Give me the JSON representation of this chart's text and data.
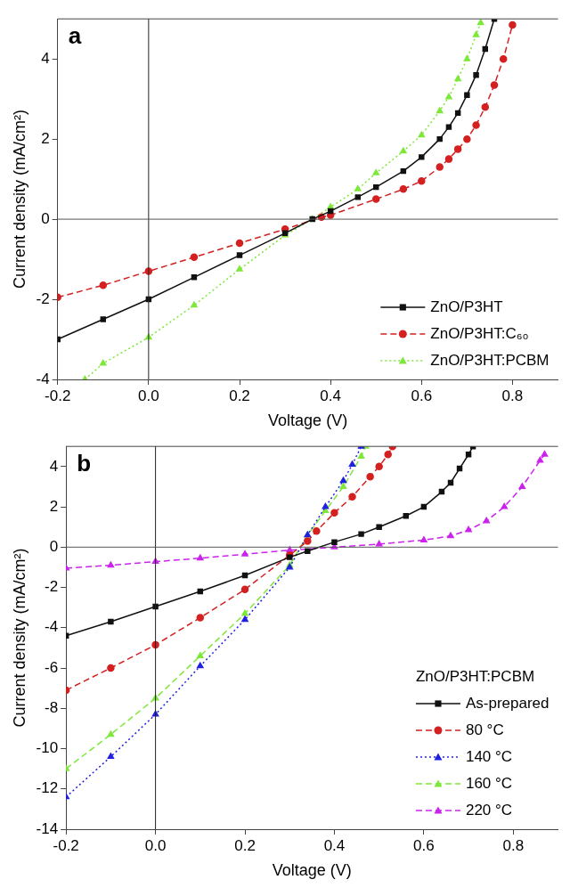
{
  "chart_data": [
    {
      "type": "line",
      "xlabel": "Voltage (V)",
      "ylabel": "Current density (mA/cm²)",
      "annotations": [
        "a"
      ],
      "xlim": [
        -0.2,
        0.9
      ],
      "xticks": [
        -0.2,
        {
          "value": 0,
          "label": "0.0"
        },
        0.2,
        0.4,
        0.6,
        0.8
      ],
      "ylim": [
        -4,
        5
      ],
      "yticks": [
        -4,
        -2,
        0,
        2,
        4
      ],
      "grid": false,
      "legend": "bottom right",
      "ref_lines": [
        {
          "axis": "x",
          "value": 0,
          "color": "#222222"
        },
        {
          "axis": "y",
          "value": 0,
          "color": "#555555"
        }
      ],
      "series": [
        {
          "name": "ZnO/P3HT",
          "color": "#111111",
          "marker": "square",
          "line_style": "solid",
          "x": [
            -0.2,
            -0.1,
            0,
            0.1,
            0.2,
            0.3,
            0.36,
            0.4,
            0.46,
            0.5,
            0.56,
            0.6,
            0.64,
            0.66,
            0.68,
            0.7,
            0.72,
            0.74,
            0.76
          ],
          "values": [
            -3.0,
            -2.5,
            -2.0,
            -1.45,
            -0.9,
            -0.35,
            0,
            0.2,
            0.55,
            0.8,
            1.2,
            1.55,
            2.0,
            2.3,
            2.65,
            3.1,
            3.6,
            4.25,
            5.0
          ]
        },
        {
          "name": "ZnO/P3HT:C₆₀",
          "color": "#d42020",
          "marker": "circle",
          "line_style": "dashed",
          "x": [
            -0.2,
            -0.1,
            0,
            0.1,
            0.2,
            0.3,
            0.38,
            0.4,
            0.5,
            0.56,
            0.6,
            0.64,
            0.66,
            0.68,
            0.7,
            0.72,
            0.74,
            0.76,
            0.78,
            0.8
          ],
          "values": [
            -1.95,
            -1.65,
            -1.3,
            -0.95,
            -0.6,
            -0.25,
            0.05,
            0.1,
            0.5,
            0.75,
            0.95,
            1.3,
            1.5,
            1.75,
            2.0,
            2.35,
            2.8,
            3.35,
            4.0,
            4.85
          ]
        },
        {
          "name": "ZnO/P3HT:PCBM",
          "color": "#7ee83a",
          "marker": "triangle",
          "line_style": "dotted",
          "x": [
            -0.14,
            -0.1,
            0,
            0.1,
            0.2,
            0.3,
            0.36,
            0.4,
            0.46,
            0.5,
            0.56,
            0.6,
            0.64,
            0.66,
            0.68,
            0.7,
            0.72,
            0.73
          ],
          "values": [
            -4.0,
            -3.6,
            -2.95,
            -2.15,
            -1.25,
            -0.4,
            0,
            0.3,
            0.75,
            1.15,
            1.7,
            2.1,
            2.7,
            3.05,
            3.5,
            4.0,
            4.6,
            4.9
          ]
        }
      ]
    },
    {
      "type": "line",
      "xlabel": "Voltage (V)",
      "ylabel": "Current density (mA/cm²)",
      "annotations": [
        "b"
      ],
      "legend_title": "ZnO/P3HT:PCBM",
      "xlim": [
        -0.2,
        0.9
      ],
      "xticks": [
        -0.2,
        {
          "value": 0,
          "label": "0.0"
        },
        0.2,
        0.4,
        0.6,
        0.8
      ],
      "ylim": [
        -14,
        5
      ],
      "yticks": [
        -14,
        -12,
        -10,
        -8,
        -6,
        -4,
        -2,
        0,
        2,
        4
      ],
      "grid": false,
      "legend": "bottom right",
      "ref_lines": [
        {
          "axis": "x",
          "value": 0,
          "color": "#222222"
        },
        {
          "axis": "y",
          "value": 0,
          "color": "#555555"
        }
      ],
      "series": [
        {
          "name": "As-prepared",
          "color": "#111111",
          "marker": "square",
          "line_style": "solid",
          "x": [
            -0.2,
            -0.1,
            0,
            0.1,
            0.2,
            0.3,
            0.34,
            0.4,
            0.46,
            0.5,
            0.56,
            0.6,
            0.64,
            0.66,
            0.68,
            0.7,
            0.71
          ],
          "values": [
            -4.4,
            -3.7,
            -2.95,
            -2.2,
            -1.4,
            -0.5,
            -0.2,
            0.25,
            0.65,
            1.0,
            1.55,
            2.0,
            2.75,
            3.2,
            3.9,
            4.6,
            5.0
          ]
        },
        {
          "name": "80 °C",
          "color": "#d42020",
          "marker": "circle",
          "line_style": "dashed",
          "x": [
            -0.2,
            -0.1,
            0,
            0.1,
            0.2,
            0.3,
            0.34,
            0.36,
            0.4,
            0.44,
            0.48,
            0.5,
            0.52,
            0.53
          ],
          "values": [
            -7.1,
            -6.0,
            -4.85,
            -3.5,
            -2.1,
            -0.4,
            0.3,
            0.8,
            1.7,
            2.5,
            3.5,
            4.0,
            4.6,
            5.0
          ]
        },
        {
          "name": "140 °C",
          "color": "#2020e0",
          "marker": "triangle",
          "line_style": "dotted",
          "x": [
            -0.2,
            -0.1,
            0,
            0.1,
            0.2,
            0.3,
            0.34,
            0.38,
            0.42,
            0.44,
            0.46
          ],
          "values": [
            -12.4,
            -10.4,
            -8.3,
            -5.9,
            -3.6,
            -1.0,
            0.6,
            2.0,
            3.3,
            4.1,
            5.0
          ]
        },
        {
          "name": "160 °C",
          "color": "#7ee83a",
          "marker": "triangle",
          "line_style": "dashed",
          "x": [
            -0.2,
            -0.1,
            0,
            0.1,
            0.2,
            0.3,
            0.34,
            0.38,
            0.42,
            0.46,
            0.47
          ],
          "values": [
            -11.0,
            -9.3,
            -7.5,
            -5.4,
            -3.3,
            -0.9,
            0.6,
            1.8,
            3.0,
            4.5,
            5.0
          ]
        },
        {
          "name": "220 °C",
          "color": "#cc22ee",
          "marker": "triangle",
          "line_style": "dashed",
          "x": [
            -0.2,
            -0.1,
            0,
            0.1,
            0.2,
            0.3,
            0.4,
            0.5,
            0.6,
            0.66,
            0.7,
            0.74,
            0.78,
            0.82,
            0.86,
            0.87
          ],
          "values": [
            -1.05,
            -0.9,
            -0.72,
            -0.55,
            -0.35,
            -0.15,
            0.0,
            0.15,
            0.35,
            0.55,
            0.85,
            1.3,
            2.0,
            3.0,
            4.3,
            4.6
          ]
        }
      ]
    }
  ]
}
